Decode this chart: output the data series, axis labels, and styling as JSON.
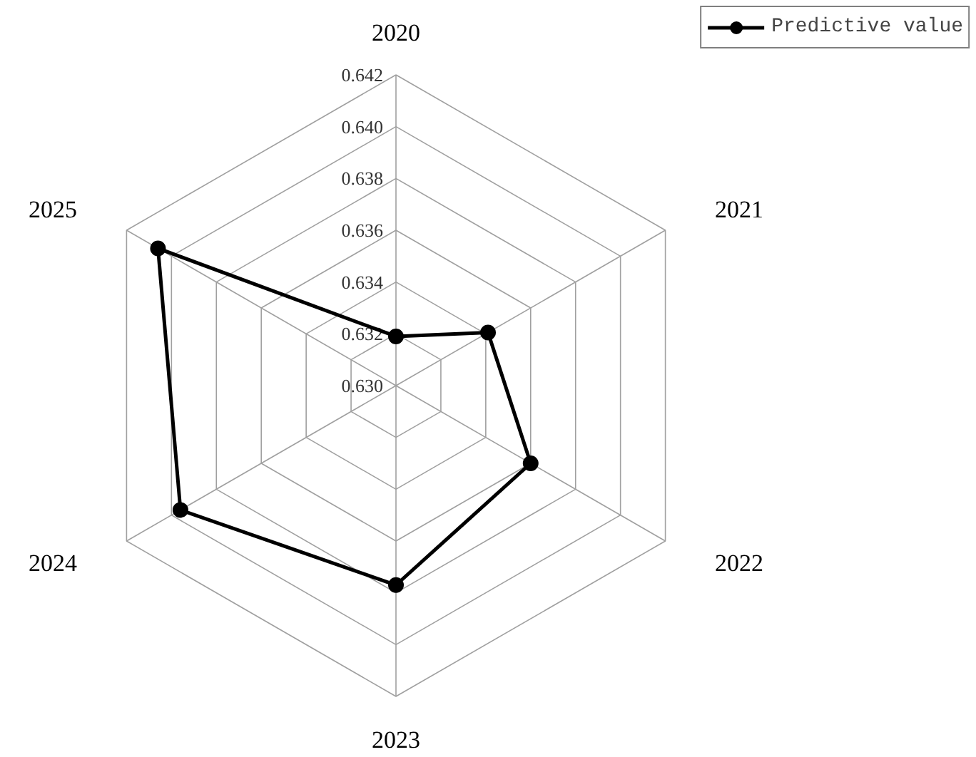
{
  "chart_data": {
    "type": "radar",
    "categories": [
      "2020",
      "2021",
      "2022",
      "2023",
      "2024",
      "2025"
    ],
    "series": [
      {
        "name": "Predictive value",
        "color": "#000000",
        "values": [
          0.6319,
          0.6341,
          0.636,
          0.6377,
          0.6396,
          0.6406
        ]
      }
    ],
    "ylim": [
      0.63,
      0.642
    ],
    "yticks": [
      {
        "value": 0.63,
        "label": "0.630"
      },
      0.632,
      0.634,
      0.636,
      0.638,
      {
        "value": 0.64,
        "label": "0.640"
      },
      0.642
    ],
    "marker": "circle",
    "line_style": "solid",
    "legend": "top right",
    "grid": true
  }
}
